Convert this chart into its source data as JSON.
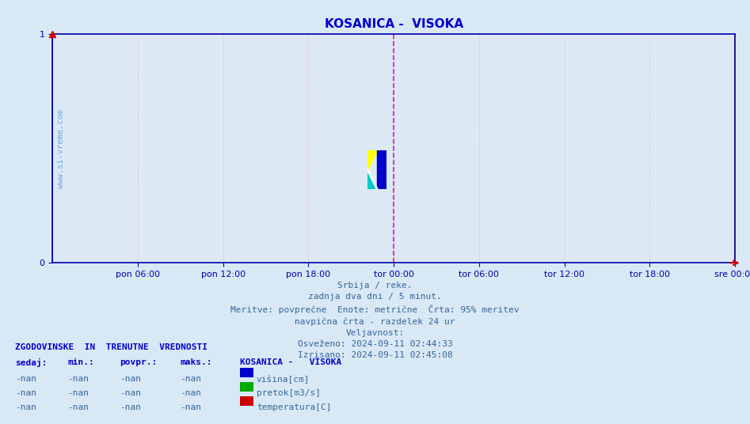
{
  "title": "KOSANICA -  VISOKA",
  "title_color": "#0000cc",
  "background_color": "#d9e8f5",
  "plot_bg_color": "#dce9f5",
  "grid_color": "#ff9999",
  "grid_style": "dotted",
  "axis_color": "#0000aa",
  "ylim": [
    0,
    1
  ],
  "yticks": [
    0,
    1
  ],
  "xtick_labels": [
    "pon 06:00",
    "pon 12:00",
    "pon 18:00",
    "tor 00:00",
    "tor 06:00",
    "tor 12:00",
    "tor 18:00",
    "sre 00:00"
  ],
  "xtick_positions": [
    0.125,
    0.25,
    0.375,
    0.5,
    0.625,
    0.75,
    0.875,
    1.0
  ],
  "vline_position": 0.5,
  "vline_color": "#cc00cc",
  "vline_style": "--",
  "watermark_text": "www.si-vreme.com",
  "watermark_color": "#4488cc",
  "watermark_alpha": 0.5,
  "info_lines": [
    "Srbija / reke.",
    "zadnja dva dni / 5 minut.",
    "Meritve: povprečne  Enote: metrične  Črta: 95% meritev",
    "navpična črta - razdelek 24 ur",
    "Veljavnost:",
    "Osveženo: 2024-09-11 02:44:33",
    "Izrisano: 2024-09-11 02:45:08"
  ],
  "info_color": "#336699",
  "table_header": "ZGODOVINSKE  IN  TRENUTNE  VREDNOSTI",
  "table_header_color": "#0000cc",
  "col_headers": [
    "sedaj:",
    "min.:",
    "povpr.:",
    "maks.:"
  ],
  "col_header_color": "#0000cc",
  "station_label": "KOSANICA -   VISOKA",
  "station_label_color": "#0000cc",
  "rows": [
    [
      "-nan",
      "-nan",
      "-nan",
      "-nan"
    ],
    [
      "-nan",
      "-nan",
      "-nan",
      "-nan"
    ],
    [
      "-nan",
      "-nan",
      "-nan",
      "-nan"
    ]
  ],
  "row_color": "#336699",
  "legend_items": [
    {
      "label": "višina[cm]",
      "color": "#0000cc"
    },
    {
      "label": "pretok[m3/s]",
      "color": "#00aa00"
    },
    {
      "label": "temperatura[C]",
      "color": "#cc0000"
    }
  ],
  "arrow_color": "#cc0000",
  "logo_colors": [
    "#ffff00",
    "#00cccc",
    "#0000cc"
  ],
  "right_vline_color": "#cc0000"
}
